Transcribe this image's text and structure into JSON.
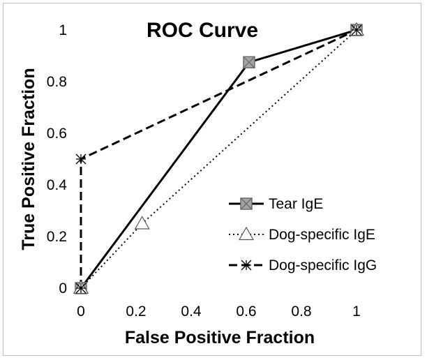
{
  "chart_data": {
    "type": "line",
    "title": "ROC Curve",
    "xlabel": "False Positive Fraction",
    "ylabel": "True Positive Fraction",
    "xlim": [
      0,
      1
    ],
    "ylim": [
      0,
      1
    ],
    "x_ticks": [
      "0",
      "0.2",
      "0.4",
      "0.6",
      "0.8",
      "1"
    ],
    "y_ticks": [
      "0",
      "0.2",
      "0.4",
      "0.6",
      "0.8",
      "1"
    ],
    "grid": false,
    "legend_position": "bottom-right",
    "series": [
      {
        "name": "Tear IgE",
        "line_style": "solid",
        "marker": "square-x",
        "color": "#000000",
        "marker_fill": "#a6a6a6",
        "points": [
          [
            0,
            0
          ],
          [
            0.61,
            0.875
          ],
          [
            1,
            1
          ]
        ]
      },
      {
        "name": "Dog-specific IgE",
        "line_style": "dotted",
        "marker": "open-triangle",
        "color": "#000000",
        "marker_fill": "#ffffff",
        "points": [
          [
            0,
            0
          ],
          [
            0.222,
            0.25
          ],
          [
            1,
            1
          ]
        ]
      },
      {
        "name": "Dog-specific IgG",
        "line_style": "dashed",
        "marker": "asterisk",
        "color": "#000000",
        "marker_fill": "none",
        "points": [
          [
            0,
            0
          ],
          [
            0,
            0.5
          ],
          [
            1,
            1
          ]
        ]
      }
    ]
  }
}
